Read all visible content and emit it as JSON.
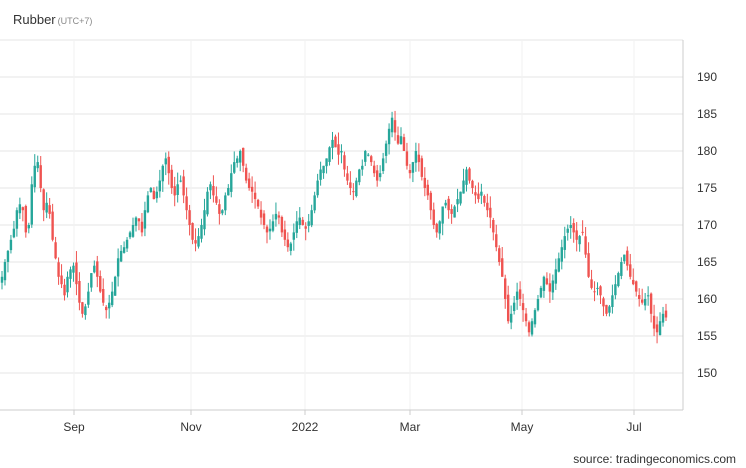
{
  "header": {
    "title": "Rubber",
    "timezone": "(UTC+7)"
  },
  "footer": {
    "source": "source: tradingeconomics.com"
  },
  "colors": {
    "up": "#26a69a",
    "down": "#ef5350",
    "grid": "#e6e6e6",
    "axis": "#cccccc"
  },
  "chart_data": {
    "type": "candlestick",
    "title": "Rubber",
    "xlabel": "",
    "ylabel": "",
    "ylim": [
      145,
      195
    ],
    "y_ticks": [
      150,
      155,
      160,
      165,
      170,
      175,
      180,
      185,
      190
    ],
    "x_ticks": [
      "Sep",
      "Nov",
      "2022",
      "Mar",
      "May",
      "Jul"
    ],
    "grid": true,
    "legend": "none",
    "series": [
      {
        "values": [
          163.0,
          165.0,
          166.5,
          168.0,
          169.5,
          172.0,
          172.8,
          172.0,
          169.0,
          170.0,
          175.5,
          178.0,
          178.5,
          175.0,
          172.0,
          173.0,
          171.5,
          168.0,
          165.5,
          163.0,
          162.0,
          160.5,
          163.0,
          164.0,
          164.5,
          162.0,
          159.5,
          158.0,
          159.0,
          161.0,
          163.5,
          164.5,
          163.0,
          161.0,
          159.5,
          158.5,
          159.5,
          161.0,
          163.0,
          165.5,
          166.5,
          167.0,
          168.0,
          169.0,
          170.0,
          171.0,
          170.5,
          169.0,
          172.0,
          174.0,
          175.0,
          173.5,
          174.5,
          176.0,
          178.0,
          179.0,
          177.0,
          175.0,
          174.0,
          175.5,
          176.0,
          174.0,
          172.0,
          170.0,
          168.0,
          167.5,
          168.5,
          170.0,
          172.0,
          174.5,
          175.5,
          174.0,
          173.0,
          171.5,
          172.0,
          174.0,
          175.0,
          177.0,
          178.5,
          179.0,
          180.0,
          178.0,
          176.0,
          175.0,
          174.5,
          173.5,
          172.5,
          171.0,
          170.0,
          169.0,
          169.5,
          170.5,
          171.5,
          171.0,
          169.0,
          168.0,
          167.0,
          167.5,
          169.0,
          170.5,
          171.0,
          170.0,
          169.5,
          170.5,
          172.0,
          174.0,
          176.0,
          177.5,
          178.0,
          179.0,
          180.5,
          181.5,
          180.5,
          179.5,
          180.0,
          177.5,
          176.0,
          175.0,
          174.5,
          176.0,
          177.5,
          178.0,
          180.0,
          179.5,
          178.5,
          177.0,
          176.0,
          177.0,
          179.0,
          181.0,
          183.0,
          184.5,
          182.5,
          181.0,
          182.0,
          180.0,
          178.0,
          177.0,
          178.5,
          180.0,
          178.5,
          176.5,
          175.0,
          174.0,
          172.0,
          170.0,
          169.0,
          170.5,
          172.5,
          173.0,
          172.0,
          171.5,
          172.5,
          173.5,
          174.5,
          176.0,
          177.5,
          176.0,
          175.0,
          174.0,
          173.5,
          174.5,
          173.0,
          172.0,
          171.0,
          169.0,
          167.0,
          165.0,
          163.0,
          160.0,
          157.0,
          158.0,
          159.5,
          161.0,
          160.0,
          158.5,
          157.0,
          155.5,
          157.0,
          158.5,
          160.0,
          161.5,
          163.0,
          162.0,
          161.0,
          162.5,
          164.0,
          165.5,
          167.0,
          168.5,
          169.5,
          170.0,
          169.0,
          168.0,
          168.5,
          169.0,
          166.0,
          163.0,
          161.5,
          161.0,
          161.5,
          160.5,
          159.0,
          158.0,
          159.0,
          160.5,
          162.0,
          163.5,
          165.0,
          166.0,
          164.5,
          163.0,
          162.0,
          161.0,
          160.0,
          159.5,
          160.0,
          160.5,
          158.0,
          156.0,
          155.5,
          157.0,
          158.0,
          157.5
        ]
      }
    ]
  }
}
